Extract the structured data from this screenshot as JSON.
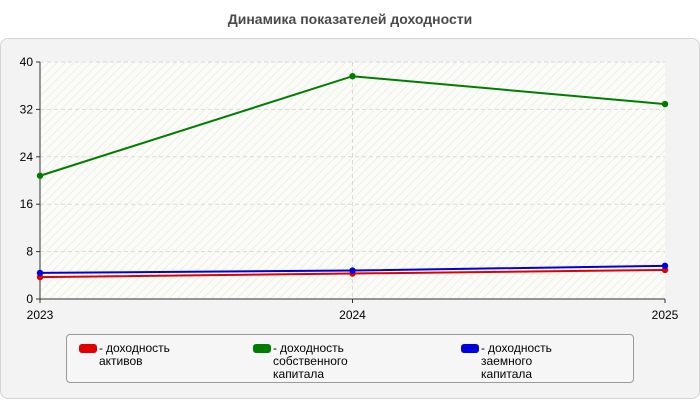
{
  "chart_data": {
    "type": "line",
    "title": "Динамика показателей доходности",
    "x": [
      "2023",
      "2024",
      "2025"
    ],
    "ylim": [
      0,
      40
    ],
    "yticks": [
      0,
      8,
      16,
      24,
      32,
      40
    ],
    "grid": true,
    "legend_position": "bottom",
    "series": [
      {
        "name": "доходность активов",
        "color": "#e00000",
        "values": [
          3.7,
          4.3,
          4.9
        ]
      },
      {
        "name": "доходность собственного капитала",
        "color": "#007d00",
        "values": [
          20.8,
          37.6,
          32.9
        ]
      },
      {
        "name": "доходность заемного капитала",
        "color": "#0000dd",
        "values": [
          4.4,
          4.8,
          5.6
        ]
      }
    ]
  },
  "legend": {
    "dash": "-",
    "items": [
      {
        "line1": "доходность активов",
        "line2": ""
      },
      {
        "line1": "доходность собственного",
        "line2": "капитала"
      },
      {
        "line1": "доходность заемного",
        "line2": "капитала"
      }
    ]
  }
}
